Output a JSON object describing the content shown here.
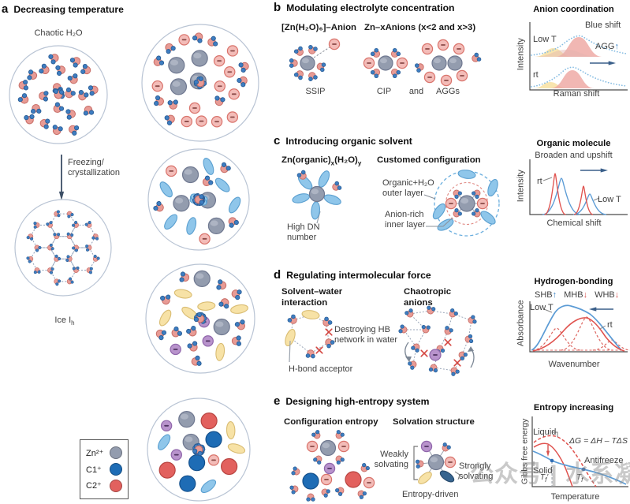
{
  "watermark": {
    "text": "公众号 | 水系凝胶"
  },
  "colors": {
    "water_oxygen": "#e89b95",
    "water_oxygen_stroke": "#c96f68",
    "hydrogen": "#3d7dc1",
    "hydrogen_stroke": "#2a5c94",
    "zinc": "#939cae",
    "zinc_stroke": "#6f7890",
    "anion_pink": "#f3bcb8",
    "anion_pink_stroke": "#d9736b",
    "anion_minus": "#8a4a47",
    "anion_purple": "#b893cc",
    "anion_purple_stroke": "#9066ab",
    "anion_purple_minus": "#4f3361",
    "cation1_blue": "#1e6cb5",
    "cation1_stroke": "#14508c",
    "cation2_red": "#e2615e",
    "cation2_stroke": "#b84440",
    "organic_blue": "#8fc6ea",
    "organic_blue_stroke": "#5a9fd0",
    "organic_yellow": "#f7e2a6",
    "organic_yellow_stroke": "#d9bc72",
    "dark_ellipse": "#36648f",
    "axis": "#4a4a4a",
    "curve_blue": "#5b9bd5",
    "curve_red": "#e0534f",
    "spectrum_dot_blue": "#85bce2",
    "arrow_navy": "#3a5f8a"
  },
  "panel_a": {
    "tag": "a",
    "title": "Decreasing temperature",
    "chaotic_label": "Chaotic H₂O",
    "freezing_line1": "Freezing/",
    "freezing_line2": "crystallization",
    "ice_label_main": "Ice I",
    "ice_label_sub": "h",
    "legend": [
      "Zn²⁺",
      "C1⁺",
      "C2⁺"
    ]
  },
  "panel_b": {
    "tag": "b",
    "title": "Modulating electrolyte concentration",
    "formula1": "[Zn(H₂O)₆]–Anion",
    "formula2": "Zn–xAnions (x<2 and x>3)",
    "cap_ssip": "SSIP",
    "cap_cip": "CIP",
    "cap_and": "and",
    "cap_aggs": "AGGs",
    "chart": {
      "title": "Anion coordination",
      "shift_label": "Blue shift",
      "low_t": "Low T",
      "agg": "AGG",
      "agg_arrow": "↑",
      "rt": "rt",
      "ylabel": "Intensity",
      "xlabel": "Raman shift"
    }
  },
  "panel_c": {
    "tag": "c",
    "title": "Introducing organic solvent",
    "formula_p1": "Zn(organic)",
    "formula_s1": "x",
    "formula_p2": "(H₂O)",
    "formula_s2": "y",
    "dn_line1": "High DN",
    "dn_line2": "number",
    "config_title": "Customed configuration",
    "outer_line1": "Organic+H₂O",
    "outer_line2": "outer layer",
    "inner_line1": "Anion-rich",
    "inner_line2": "inner layer",
    "chart": {
      "title": "Organic molecule",
      "subtitle": "Broaden and upshift",
      "rt": "rt",
      "low_t": "Low T",
      "ylabel": "Intensity",
      "xlabel": "Chemical shift"
    }
  },
  "panel_d": {
    "tag": "d",
    "title": "Regulating intermolecular force",
    "solvent_line1": "Solvent–water",
    "solvent_line2": "interaction",
    "destroy_line1": "Destroying HB",
    "destroy_line2": "network in water",
    "acceptor": "H-bond acceptor",
    "chao_line1": "Chaotropic",
    "chao_line2": "anions",
    "chart": {
      "title": "Hydrogen-bonding",
      "shb": "SHB",
      "shb_arrow": "↑",
      "mhb": "MHB",
      "mhb_arrow": "↓",
      "whb": "WHB",
      "whb_arrow": "↓",
      "low_t": "Low T",
      "rt": "rt",
      "ylabel": "Absorbance",
      "xlabel": "Wavenumber"
    }
  },
  "panel_e": {
    "tag": "e",
    "title": "Designing high-entropy system",
    "config_label": "Configuration entropy",
    "solvation_label": "Solvation structure",
    "weak_line1": "Weakly",
    "weak_line2": "solvating",
    "strong_line1": "Strongly",
    "strong_line2": "solvating",
    "entropy_driven": "Entropy-driven",
    "chart": {
      "title": "Entropy increasing",
      "liquid": "Liquid",
      "solid": "Solid",
      "antifreeze": "Antifreeze",
      "equation": "ΔG = ΔH – TΔS",
      "t_left": "T",
      "t_left_sub": "f",
      "t_left_prime": "′",
      "t_right": "T",
      "t_right_sub": "f",
      "ylabel": "Gibbs free energy",
      "xlabel": "Temperature"
    }
  }
}
